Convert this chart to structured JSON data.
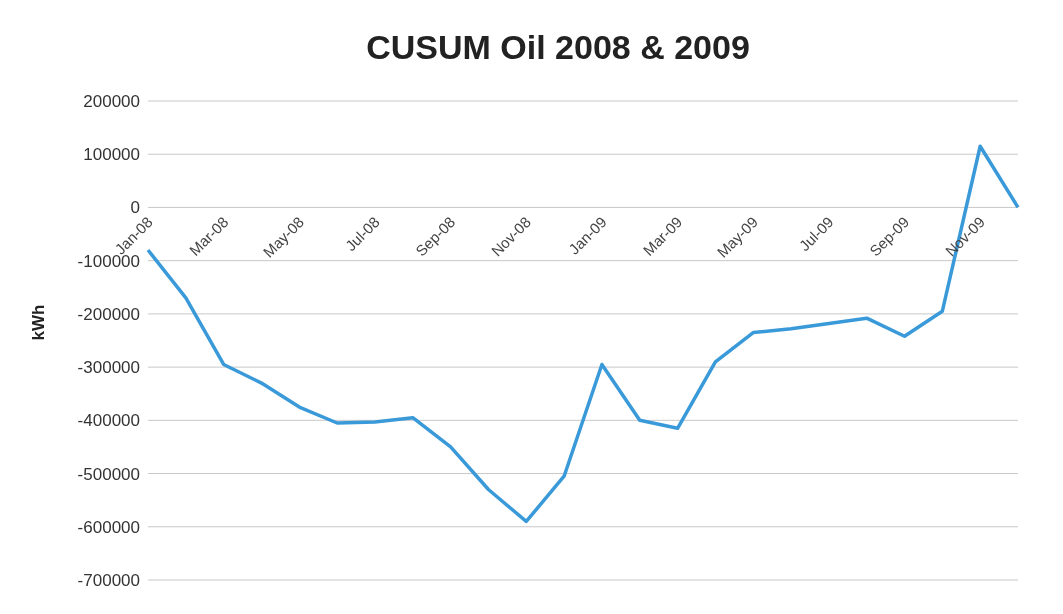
{
  "chart_data": {
    "type": "line",
    "title": "CUSUM Oil 2008 & 2009",
    "ylabel": "kWh",
    "categories": [
      "Jan-08",
      null,
      "Mar-08",
      null,
      "May-08",
      null,
      "Jul-08",
      null,
      "Sep-08",
      null,
      "Nov-08",
      null,
      "Jan-09",
      null,
      "Mar-09",
      null,
      "May-09",
      null,
      "Jul-09",
      null,
      "Sep-09",
      null,
      "Nov-09",
      null
    ],
    "series": [
      {
        "color": "#3a9ad9",
        "values": [
          -80000,
          -170000,
          -295000,
          -330000,
          -375000,
          -405000,
          -403000,
          -395000,
          -450000,
          -530000,
          -590000,
          -505000,
          -295000,
          -400000,
          -415000,
          -290000,
          -235000,
          -228000,
          -218000,
          -208000,
          -242000,
          -195000,
          115000,
          0
        ]
      }
    ],
    "ylim": [
      -700000,
      200000
    ],
    "yticks": [
      -700000,
      -600000,
      -500000,
      -400000,
      -300000,
      -200000,
      -100000,
      0,
      100000,
      200000
    ],
    "grid": "y",
    "marker": "none",
    "line_style": "solid",
    "legend": false
  }
}
